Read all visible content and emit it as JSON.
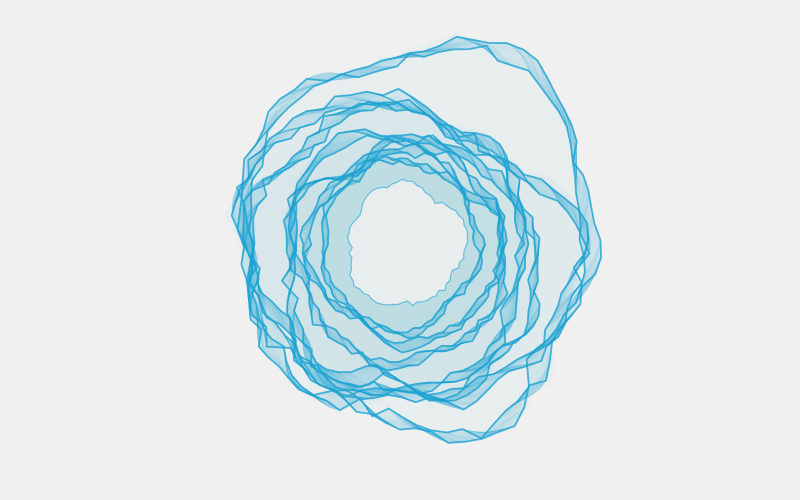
{
  "artwork": {
    "background_color": "#f0f0f0",
    "stroke_color": "#1ea3d3",
    "stroke_opacity": 0.42,
    "shape": "ring",
    "style": "generative-line-layers"
  }
}
